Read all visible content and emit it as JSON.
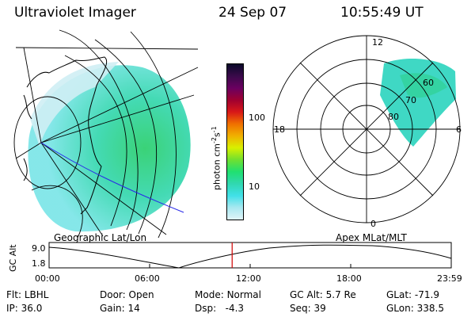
{
  "header": {
    "instrument": "Ultraviolet Imager",
    "date": "24 Sep 07",
    "time": "10:55:49 UT"
  },
  "colorbar": {
    "unit_main": "photon cm",
    "unit_sup1": "-2",
    "unit_s": "s",
    "unit_sup2": "-1",
    "ticks": [
      "100",
      "10"
    ],
    "scale": "log",
    "colors": [
      "#0a0a2a",
      "#3a0a4a",
      "#6a0060",
      "#a00030",
      "#d81818",
      "#f07000",
      "#f0b000",
      "#d8f000",
      "#70e030",
      "#20e070",
      "#30d8b0",
      "#40e0e8",
      "#a8e8f0",
      "#e0f4f8"
    ]
  },
  "left_panel": {
    "caption": "Geographic Lat/Lon"
  },
  "right_panel": {
    "caption": "Apex MLat/MLT",
    "mlt_labels": {
      "top": "12",
      "left": "18",
      "right": "6",
      "bottom": "0"
    },
    "mlat_labels": [
      "60",
      "70",
      "80"
    ]
  },
  "timeline": {
    "y_label": "GC Alt",
    "y_ticks": [
      "9.0",
      "1.8"
    ],
    "x_ticks": [
      "00:00",
      "06:00",
      "12:00",
      "18:00",
      "23:59"
    ],
    "marker_time": "10:55",
    "marker_color": "#d00000"
  },
  "info": {
    "filter_label": "Flt:",
    "filter": "LBHL",
    "ip_label": "IP:",
    "ip": "36.0",
    "door_label": "Door:",
    "door": "Open",
    "gain_label": "Gain:",
    "gain": "14",
    "mode_label": "Mode:",
    "mode": "Normal",
    "dsp_label": "Dsp:",
    "dsp": "-4.3",
    "gcalt_label": "GC Alt:",
    "gcalt": "5.7 Re",
    "seq_label": "Seq:",
    "seq": "39",
    "glat_label": "GLat:",
    "glat": "-71.9",
    "glon_label": "GLon:",
    "glon": "338.5"
  }
}
